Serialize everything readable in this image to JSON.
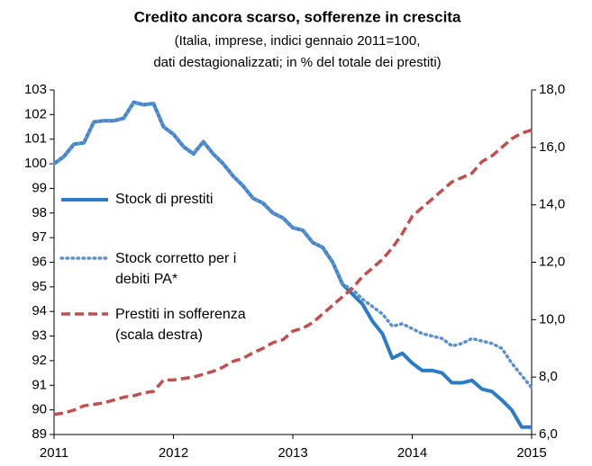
{
  "chart_data": {
    "type": "line",
    "title": "Credito ancora scarso, sofferenze in crescita",
    "subtitle": [
      "(Italia, imprese, indici gennaio 2011=100,",
      "dati destagionalizzati; in % del totale dei prestiti)"
    ],
    "x": [
      2011,
      2011.083,
      2011.167,
      2011.25,
      2011.333,
      2011.417,
      2011.5,
      2011.583,
      2011.667,
      2011.75,
      2011.833,
      2011.917,
      2012,
      2012.083,
      2012.167,
      2012.25,
      2012.333,
      2012.417,
      2012.5,
      2012.583,
      2012.667,
      2012.75,
      2012.833,
      2012.917,
      2013,
      2013.083,
      2013.167,
      2013.25,
      2013.333,
      2013.417,
      2013.5,
      2013.583,
      2013.667,
      2013.75,
      2013.833,
      2013.917,
      2014,
      2014.083,
      2014.167,
      2014.25,
      2014.333,
      2014.417,
      2014.5,
      2014.583,
      2014.667,
      2014.75,
      2014.833,
      2014.917,
      2015
    ],
    "xlim": [
      2011,
      2015
    ],
    "xticks": [
      2011,
      2012,
      2013,
      2014,
      2015
    ],
    "ylim": [
      89,
      103
    ],
    "yticks": [
      89,
      90,
      91,
      92,
      93,
      94,
      95,
      96,
      97,
      98,
      99,
      100,
      101,
      102,
      103
    ],
    "y2lim": [
      6,
      18
    ],
    "y2ticks": [
      {
        "value": 6,
        "label": "6,0"
      },
      {
        "value": 8,
        "label": "8,0"
      },
      {
        "value": 10,
        "label": "10,0"
      },
      {
        "value": 12,
        "label": "12,0"
      },
      {
        "value": 14,
        "label": "14,0"
      },
      {
        "value": 16,
        "label": "16,0"
      },
      {
        "value": 18,
        "label": "18,0"
      }
    ],
    "series": [
      {
        "name": "Stock di prestiti",
        "color": "#2b7cc4",
        "style": "solid",
        "values": [
          100.0,
          100.3,
          100.8,
          100.85,
          101.7,
          101.75,
          101.75,
          101.85,
          102.5,
          102.4,
          102.45,
          101.5,
          101.2,
          100.7,
          100.4,
          100.9,
          100.4,
          100.0,
          99.5,
          99.1,
          98.6,
          98.4,
          98.0,
          97.8,
          97.4,
          97.3,
          96.8,
          96.6,
          96.0,
          95.1,
          94.7,
          94.3,
          93.6,
          93.1,
          92.1,
          92.3,
          91.9,
          91.6,
          91.6,
          91.5,
          91.1,
          91.1,
          91.2,
          90.85,
          90.75,
          90.4,
          90.0,
          89.3,
          89.3
        ]
      },
      {
        "name": "Stock corretto per i debiti PA*",
        "color": "#5b8fd0",
        "style": "dotted",
        "values": [
          100.0,
          100.3,
          100.8,
          100.85,
          101.7,
          101.75,
          101.75,
          101.85,
          102.5,
          102.4,
          102.45,
          101.5,
          101.2,
          100.7,
          100.4,
          100.9,
          100.4,
          100.0,
          99.5,
          99.1,
          98.6,
          98.4,
          98.0,
          97.8,
          97.4,
          97.3,
          96.8,
          96.6,
          96.0,
          95.1,
          94.9,
          94.5,
          94.2,
          93.9,
          93.4,
          93.5,
          93.3,
          93.1,
          93.0,
          92.9,
          92.6,
          92.7,
          92.9,
          92.8,
          92.7,
          92.5,
          91.9,
          91.4,
          90.9
        ]
      },
      {
        "name": "Prestiti in sofferenza (scala destra)",
        "color": "#c0504d",
        "style": "dashed",
        "axis": "y2",
        "values": [
          6.7,
          6.75,
          6.85,
          7.0,
          7.05,
          7.1,
          7.2,
          7.3,
          7.35,
          7.45,
          7.5,
          7.9,
          7.9,
          7.95,
          8.0,
          8.1,
          8.2,
          8.35,
          8.55,
          8.65,
          8.85,
          9.0,
          9.2,
          9.3,
          9.6,
          9.7,
          9.9,
          10.2,
          10.5,
          10.8,
          11.1,
          11.5,
          11.8,
          12.1,
          12.5,
          13.0,
          13.6,
          13.9,
          14.2,
          14.5,
          14.8,
          14.95,
          15.1,
          15.5,
          15.7,
          16.0,
          16.3,
          16.5,
          16.6
        ]
      }
    ]
  }
}
